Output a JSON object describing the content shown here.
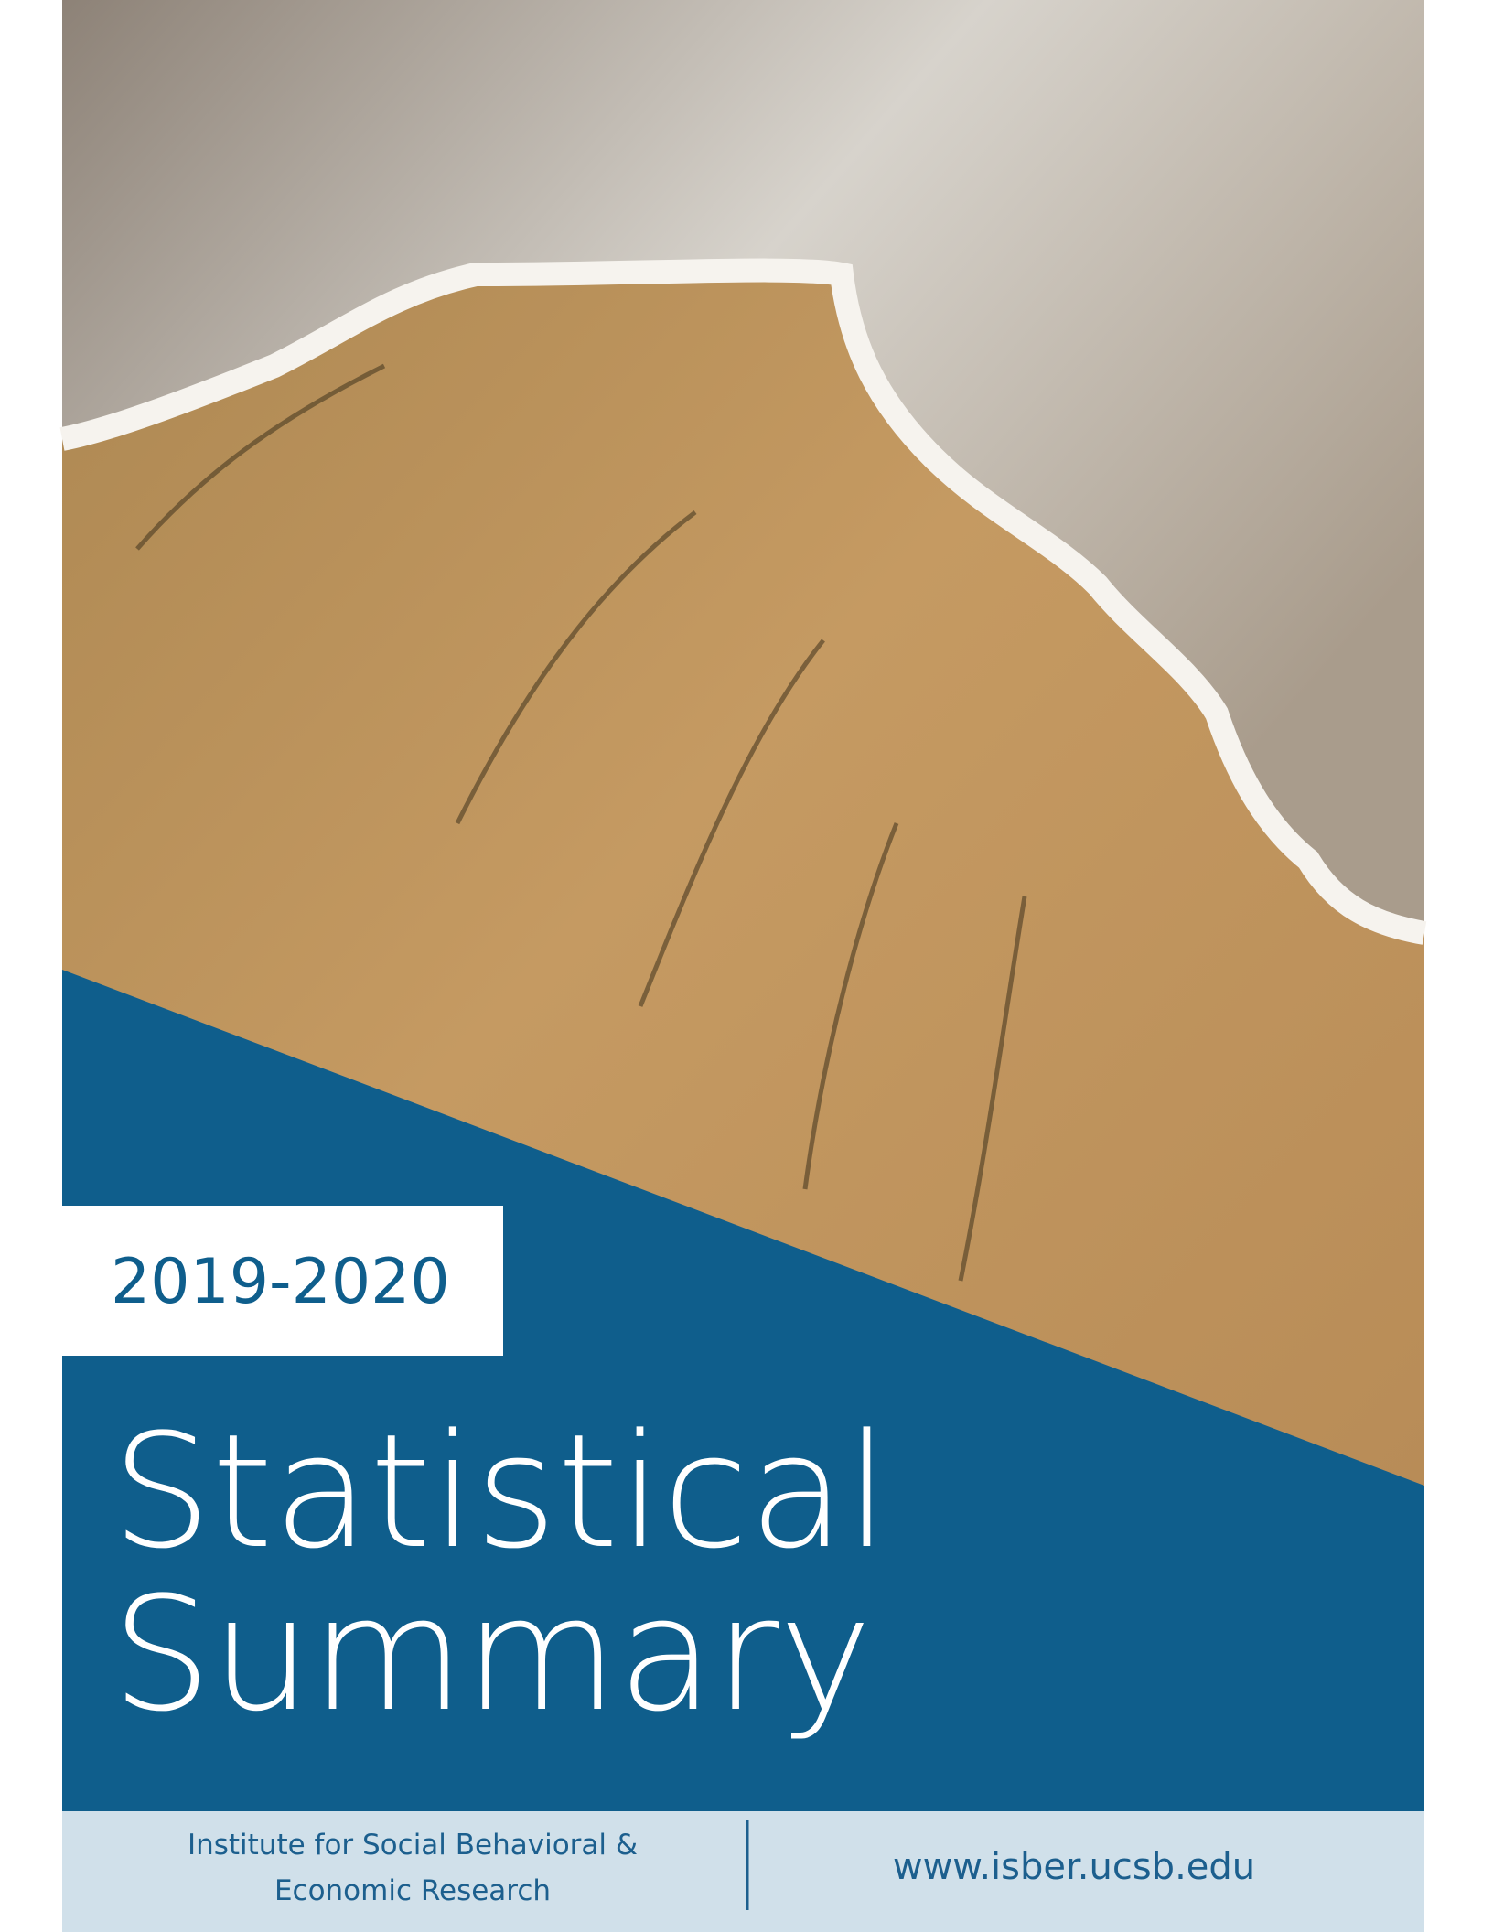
{
  "cover": {
    "year": "2019-2020",
    "title_lines": [
      "Statistical",
      "Summary"
    ],
    "footer": {
      "institute_lines": [
        "Institute for Social Behavioral &",
        "Economic Research"
      ],
      "url": "www.isber.ucsb.edu"
    }
  }
}
